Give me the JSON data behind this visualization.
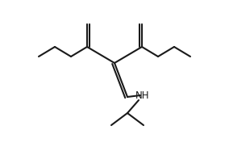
{
  "bg_color": "#ffffff",
  "line_color": "#1a1a1a",
  "lw": 1.5,
  "text_color": "#1a1a1a",
  "nh_label": "NH",
  "nh_fontsize": 8.5,
  "figsize": [
    2.84,
    1.82
  ],
  "dpi": 100
}
